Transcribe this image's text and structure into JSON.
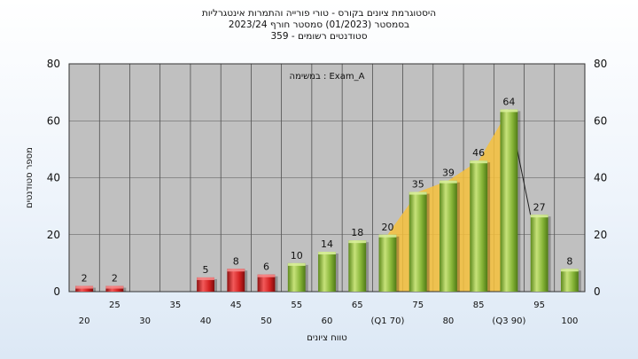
{
  "titles": {
    "line1": "היסטוגרמת ציונים בקורס - טורי פורייה והתמרות אינטגרליות",
    "line2": "בסמסטר  (01/2023)  סמסטר חורף 2023/24",
    "line3": "סטודנטים רשומים - 359"
  },
  "chart_data": {
    "type": "bar",
    "title": "היסטוגרמת ציונים בקורס - טורי פורייה והתמרות אינטגרליות",
    "annotation": "במשימה : Exam_A",
    "xlabel": "טווח ציונים",
    "ylabel": "מספר סטודנטים",
    "ylim": [
      0,
      80
    ],
    "yticks": [
      0,
      20,
      40,
      60,
      80
    ],
    "grid": true,
    "categories": [
      "20",
      "25",
      "30",
      "35",
      "40",
      "45",
      "50",
      "55",
      "60",
      "65",
      "70",
      "75",
      "80",
      "85",
      "90",
      "95",
      "100"
    ],
    "x_tick_labels": [
      "20",
      "25",
      "30",
      "35",
      "40",
      "45",
      "50",
      "55",
      "60",
      "65",
      "(Q1 70)",
      "75",
      "80",
      "85",
      "(Q3 90)",
      "95",
      "100"
    ],
    "values": [
      2,
      2,
      0,
      0,
      5,
      8,
      6,
      10,
      14,
      18,
      20,
      35,
      39,
      46,
      64,
      27,
      8
    ],
    "colors": {
      "fail": "#dd2a2a",
      "pass": "#8bb83a",
      "quartile_band": "#f6c13c",
      "plot_bg": "#c0c0c0"
    }
  }
}
